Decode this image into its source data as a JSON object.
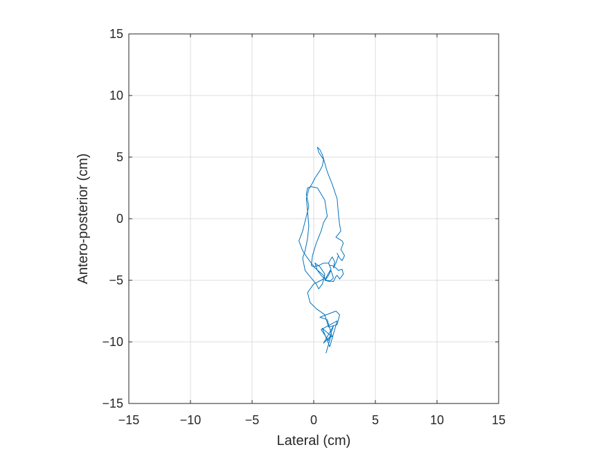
{
  "chart_data": {
    "type": "line",
    "title": "",
    "xlabel": "Lateral (cm)",
    "ylabel": "Antero-posterior (cm)",
    "xlim": [
      -15,
      15
    ],
    "ylim": [
      -15,
      15
    ],
    "xticks": [
      -15,
      -10,
      -5,
      0,
      5,
      10,
      15
    ],
    "yticks": [
      -15,
      -10,
      -5,
      0,
      5,
      10,
      15
    ],
    "grid": true,
    "legend": "none",
    "series": [
      {
        "color": "#0072BD",
        "x": [
          1.0,
          1.4,
          0.8,
          1.6,
          1.2,
          0.6,
          1.9,
          1.3,
          0.7,
          1.5,
          1.1,
          0.5,
          1.8,
          2.1,
          1.9,
          1.2,
          0.9,
          0.2,
          -0.3,
          -0.5,
          0.0,
          0.6,
          0.9,
          0.8,
          0.1,
          -0.5,
          -0.9,
          -1.2,
          -0.9,
          -0.6,
          -0.4,
          -0.6,
          -0.5,
          -0.2,
          0.3,
          0.6,
          0.9,
          1.0,
          1.1,
          0.8,
          0.6,
          0.2,
          -0.1,
          -0.2,
          0.0,
          0.4,
          0.8,
          1.2,
          1.3,
          1.5,
          1.8,
          2.0,
          2.3,
          2.4,
          2.1,
          1.9,
          1.8,
          1.6,
          1.0,
          0.6,
          0.3,
          0.1,
          0.5,
          0.9,
          0.7,
          0.4,
          0.2,
          -0.3,
          -0.7,
          -0.9,
          -0.7,
          -0.5,
          -0.4,
          -0.5,
          -0.6,
          -0.4,
          -0.1,
          0.1,
          0.3,
          0.5,
          0.7,
          0.8,
          0.6,
          0.4,
          0.3,
          0.5,
          0.7,
          0.9,
          1.1,
          1.5,
          1.9,
          2.0,
          2.1,
          2.2,
          1.8,
          2.3,
          2.4,
          2.2,
          2.5,
          2.3,
          2.1,
          1.9,
          2.0,
          1.8,
          1.6,
          1.7,
          1.5,
          1.2,
          1.4,
          1.1,
          0.9,
          1.3,
          1.6,
          1.4,
          1.2,
          1.0,
          1.0
        ],
        "y": [
          -10.9,
          -9.5,
          -10.1,
          -8.7,
          -9.9,
          -9.0,
          -8.3,
          -10.4,
          -8.9,
          -9.6,
          -8.2,
          -8.0,
          -7.5,
          -7.8,
          -8.6,
          -8.8,
          -7.8,
          -7.3,
          -6.8,
          -6.0,
          -5.3,
          -5.0,
          -4.8,
          -4.6,
          -4.0,
          -3.2,
          -2.6,
          -1.8,
          -1.0,
          0.2,
          1.0,
          2.0,
          2.5,
          2.6,
          2.5,
          2.0,
          1.5,
          0.8,
          0.2,
          -0.3,
          -1.0,
          -2.0,
          -3.0,
          -3.8,
          -3.9,
          -3.8,
          -3.6,
          -3.6,
          -3.8,
          -3.8,
          -4.0,
          -4.2,
          -4.1,
          -4.5,
          -4.9,
          -4.6,
          -4.7,
          -5.1,
          -5.0,
          -4.6,
          -4.2,
          -3.6,
          -3.9,
          -4.5,
          -5.3,
          -5.7,
          -5.3,
          -4.7,
          -4.2,
          -3.2,
          -2.6,
          -1.6,
          -0.6,
          0.6,
          1.6,
          2.4,
          2.9,
          3.3,
          3.6,
          3.9,
          4.3,
          4.8,
          5.1,
          5.4,
          5.8,
          5.6,
          5.2,
          4.5,
          3.8,
          2.8,
          1.6,
          0.4,
          -0.5,
          -1.0,
          -1.5,
          -1.8,
          -2.0,
          -2.5,
          -3.0,
          -3.4,
          -3.2,
          -2.8,
          -3.0,
          -3.6,
          -4.0,
          -3.5,
          -3.1,
          -3.6,
          -4.1,
          -4.6,
          -5.0,
          -5.1,
          -4.8,
          -4.2,
          -4.6,
          -4.9,
          -4.9
        ]
      }
    ]
  }
}
